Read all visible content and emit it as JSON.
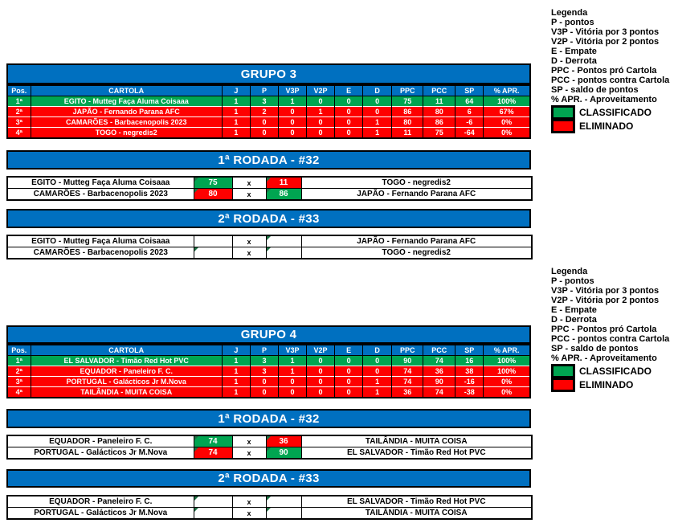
{
  "ui": {
    "score_separator": "x",
    "colors": {
      "blue": "#0070C0",
      "green": "#00A551",
      "red": "#FE0000",
      "marker_green": "#1E7044"
    }
  },
  "legend": {
    "title": "Legenda",
    "items": [
      "P - pontos",
      "V3P - Vitória por 3 pontos",
      "V2P - Vitória por 2 pontos",
      "E - Empate",
      "D - Derrota",
      "PPC - Pontos pró Cartola",
      "PCC - pontos contra Cartola",
      "SP - saldo de pontos",
      "% APR. - Aproveitamento"
    ],
    "classified_label": "CLASSIFICADO",
    "eliminated_label": "ELIMINADO"
  },
  "groups": [
    {
      "title": "GRUPO 3",
      "columns": [
        "Pos.",
        "CARTOLA",
        "J",
        "P",
        "V3P",
        "V2P",
        "E",
        "D",
        "PPC",
        "PCC",
        "SP",
        "% APR."
      ],
      "rows": [
        {
          "pos": "1ª",
          "cartola": "EGITO - Mutteg Faça Aluma Coisaaa",
          "j": 1,
          "p": 3,
          "v3p": 1,
          "v2p": 0,
          "e": 0,
          "d": 0,
          "ppc": 75,
          "pcc": 11,
          "sp": 64,
          "apr": "100%",
          "status": "classified"
        },
        {
          "pos": "2ª",
          "cartola": "JAPÃO - Fernando Parana AFC",
          "j": 1,
          "p": 2,
          "v3p": 0,
          "v2p": 1,
          "e": 0,
          "d": 0,
          "ppc": 86,
          "pcc": 80,
          "sp": 6,
          "apr": "67%",
          "status": "eliminated"
        },
        {
          "pos": "3ª",
          "cartola": "CAMARÕES - Barbacenopolis 2023",
          "j": 1,
          "p": 0,
          "v3p": 0,
          "v2p": 0,
          "e": 0,
          "d": 1,
          "ppc": 80,
          "pcc": 86,
          "sp": -6,
          "apr": "0%",
          "status": "eliminated"
        },
        {
          "pos": "4ª",
          "cartola": "TOGO - negredis2",
          "j": 1,
          "p": 0,
          "v3p": 0,
          "v2p": 0,
          "e": 0,
          "d": 1,
          "ppc": 11,
          "pcc": 75,
          "sp": -64,
          "apr": "0%",
          "status": "eliminated"
        }
      ],
      "rounds": [
        {
          "title": "1ª RODADA - #32",
          "matches": [
            {
              "home": "EGITO - Mutteg Faça Aluma Coisaaa",
              "home_score": "75",
              "home_result": "win",
              "home_marker": true,
              "away_score": "11",
              "away_result": "loss",
              "away_marker": true,
              "away": "TOGO - negredis2"
            },
            {
              "home": "CAMARÕES - Barbacenopolis 2023",
              "home_score": "80",
              "home_result": "loss",
              "home_marker": true,
              "away_score": "86",
              "away_result": "win",
              "away_marker": true,
              "away": "JAPÃO - Fernando Parana AFC"
            }
          ]
        },
        {
          "title": "2ª RODADA - #33",
          "matches": [
            {
              "home": "EGITO - Mutteg Faça Aluma Coisaaa",
              "home_score": "",
              "home_result": "pending",
              "home_marker": false,
              "away_score": "",
              "away_result": "pending",
              "away_marker": true,
              "away": "JAPÃO - Fernando Parana AFC"
            },
            {
              "home": "CAMARÕES - Barbacenopolis 2023",
              "home_score": "",
              "home_result": "pending",
              "home_marker": true,
              "away_score": "",
              "away_result": "pending",
              "away_marker": true,
              "away": "TOGO - negredis2"
            }
          ]
        }
      ]
    },
    {
      "title": "GRUPO 4",
      "columns": [
        "Pos.",
        "CARTOLA",
        "J",
        "P",
        "V3P",
        "V2P",
        "E",
        "D",
        "PPC",
        "PCC",
        "SP",
        "% APR."
      ],
      "rows": [
        {
          "pos": "1ª",
          "cartola": "EL SALVADOR - Timão Red Hot PVC",
          "j": 1,
          "p": 3,
          "v3p": 1,
          "v2p": 0,
          "e": 0,
          "d": 0,
          "ppc": 90,
          "pcc": 74,
          "sp": 16,
          "apr": "100%",
          "status": "classified"
        },
        {
          "pos": "2ª",
          "cartola": "EQUADOR - Paneleiro F. C.",
          "j": 1,
          "p": 3,
          "v3p": 1,
          "v2p": 0,
          "e": 0,
          "d": 0,
          "ppc": 74,
          "pcc": 36,
          "sp": 38,
          "apr": "100%",
          "status": "eliminated"
        },
        {
          "pos": "3ª",
          "cartola": "PORTUGAL - Galácticos Jr M.Nova",
          "j": 1,
          "p": 0,
          "v3p": 0,
          "v2p": 0,
          "e": 0,
          "d": 1,
          "ppc": 74,
          "pcc": 90,
          "sp": -16,
          "apr": "0%",
          "status": "eliminated"
        },
        {
          "pos": "4ª",
          "cartola": "TAILÂNDIA - MUITA COISA",
          "j": 1,
          "p": 0,
          "v3p": 0,
          "v2p": 0,
          "e": 0,
          "d": 1,
          "ppc": 36,
          "pcc": 74,
          "sp": -38,
          "apr": "0%",
          "status": "eliminated"
        }
      ],
      "rounds": [
        {
          "title": "1ª RODADA - #32",
          "matches": [
            {
              "home": "EQUADOR - Paneleiro F. C.",
              "home_score": "74",
              "home_result": "win",
              "home_marker": true,
              "away_score": "36",
              "away_result": "loss",
              "away_marker": true,
              "away": "TAILÂNDIA - MUITA COISA"
            },
            {
              "home": "PORTUGAL - Galácticos Jr M.Nova",
              "home_score": "74",
              "home_result": "loss",
              "home_marker": true,
              "away_score": "90",
              "away_result": "win",
              "away_marker": true,
              "away": "EL SALVADOR - Timão Red Hot PVC"
            }
          ]
        },
        {
          "title": "2ª RODADA - #33",
          "matches": [
            {
              "home": "EQUADOR - Paneleiro F. C.",
              "home_score": "",
              "home_result": "pending",
              "home_marker": true,
              "away_score": "",
              "away_result": "pending",
              "away_marker": true,
              "away": "EL SALVADOR - Timão Red Hot PVC"
            },
            {
              "home": "PORTUGAL - Galácticos Jr M.Nova",
              "home_score": "",
              "home_result": "pending",
              "home_marker": true,
              "away_score": "",
              "away_result": "pending",
              "away_marker": true,
              "away": "TAILÂNDIA - MUITA COISA"
            }
          ]
        }
      ]
    }
  ]
}
